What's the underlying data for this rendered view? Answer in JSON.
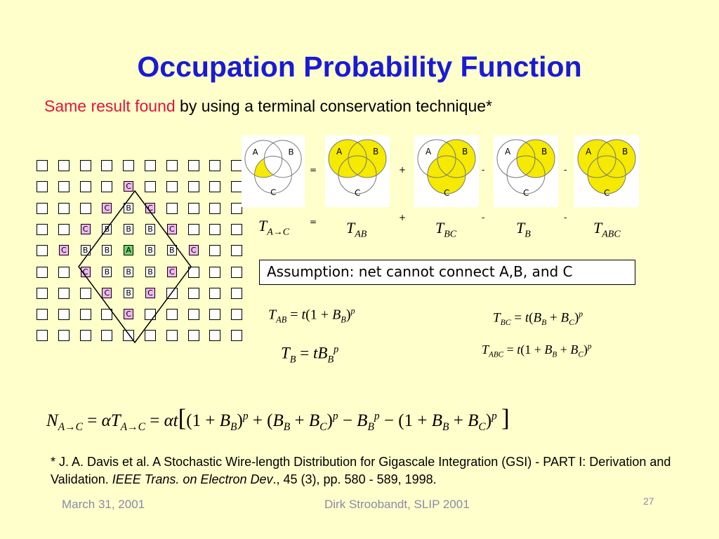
{
  "slide": {
    "title": "Occupation Probability Function",
    "subtitle_red": "Same result found",
    "subtitle_rest": " by using a terminal conservation technique*",
    "assumption": "Assumption: net cannot connect A,B, and C",
    "grid": [
      [
        "",
        "",
        "",
        "",
        "",
        "",
        "",
        "",
        "",
        ""
      ],
      [
        "",
        "",
        "",
        "",
        "C",
        "",
        "",
        "",
        "",
        ""
      ],
      [
        "",
        "",
        "",
        "C",
        "B",
        "C",
        "",
        "",
        "",
        ""
      ],
      [
        "",
        "",
        "C",
        "B",
        "B",
        "B",
        "C",
        "",
        "",
        ""
      ],
      [
        "",
        "C",
        "B",
        "B",
        "A",
        "B",
        "B",
        "C",
        "",
        ""
      ],
      [
        "",
        "",
        "C",
        "B",
        "B",
        "B",
        "C",
        "",
        "",
        ""
      ],
      [
        "",
        "",
        "",
        "C",
        "B",
        "C",
        "",
        "",
        "",
        ""
      ],
      [
        "",
        "",
        "",
        "",
        "C",
        "",
        "",
        "",
        "",
        ""
      ],
      [
        "",
        "",
        "",
        "",
        "",
        "",
        "",
        "",
        "",
        ""
      ]
    ],
    "venn_labels": {
      "a": "A",
      "b": "B",
      "c": "C"
    },
    "venn_ops": [
      "=",
      "+",
      "-",
      "-"
    ],
    "term_ops": [
      "=",
      "+",
      "-",
      "-"
    ],
    "terms": [
      {
        "main": "T",
        "sub": "A→C"
      },
      {
        "main": "T",
        "sub": "AB"
      },
      {
        "main": "T",
        "sub": "BC"
      },
      {
        "main": "T",
        "sub": "B"
      },
      {
        "main": "T",
        "sub": "ABC"
      }
    ],
    "highlight_color": "#f5ea00",
    "title_color": "#1a1ad6",
    "subtitle_highlight_color": "#e0143c",
    "footnote_part1": "* J. A. Davis et al. A Stochastic Wire-length Distribution for Gigascale Integration (GSI) - PART I: Derivation and Validation. ",
    "footnote_journal": "IEEE Trans. on Electron Dev",
    "footnote_part2": "., 45 (3), pp. 580 - 589, 1998.",
    "footer_date": "March 31, 2001",
    "footer_author": "Dirk Stroobandt, SLIP 2001",
    "page_number": "27"
  }
}
